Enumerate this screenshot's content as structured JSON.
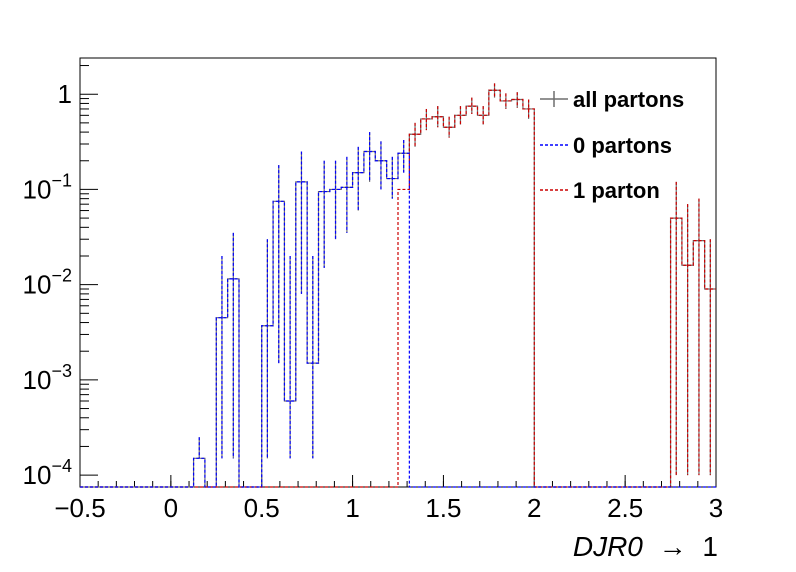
{
  "chart_data": {
    "type": "histogram",
    "xlabel_var": "DJR0",
    "xlabel_arrow": "→",
    "xlabel_suffix": "1",
    "xlim": [
      -0.5,
      3.0
    ],
    "ylim": [
      7.5e-05,
      2.4
    ],
    "yscale": "log",
    "bin_width": 0.0625,
    "x_ticks": [
      -0.5,
      0,
      0.5,
      1,
      1.5,
      2,
      2.5,
      3
    ],
    "x_tick_labels": [
      "−0.5",
      "0",
      "0.5",
      "1",
      "1.5",
      "2",
      "2.5",
      "3"
    ],
    "y_ticks": [
      {
        "value": 0.0001,
        "base": "10",
        "exp": "−4"
      },
      {
        "value": 0.001,
        "base": "10",
        "exp": "−3"
      },
      {
        "value": 0.01,
        "base": "10",
        "exp": "−2"
      },
      {
        "value": 0.1,
        "base": "10",
        "exp": "−1"
      },
      {
        "value": 1,
        "base": "1",
        "exp": ""
      }
    ],
    "legend": {
      "position": "top-right"
    },
    "series": [
      {
        "name": "all partons",
        "color": "#6e6e6e",
        "dash": "solid",
        "bins": [
          {
            "x": 0.125,
            "y": 0.00015,
            "err_hi": 0.00025
          },
          {
            "x": 0.25,
            "y": 0.0045,
            "err_lo": 0.00015,
            "err_hi": 0.02
          },
          {
            "x": 0.3125,
            "y": 0.0115,
            "err_lo": 0.00015,
            "err_hi": 0.035
          },
          {
            "x": 0.5,
            "y": 0.0037,
            "err_lo": 0.00015,
            "err_hi": 0.03
          },
          {
            "x": 0.5625,
            "y": 0.075,
            "err_lo": 0.0015,
            "err_hi": 0.18
          },
          {
            "x": 0.625,
            "y": 0.0006,
            "err_lo": 0.00015,
            "err_hi": 0.02
          },
          {
            "x": 0.6875,
            "y": 0.12,
            "err_lo": 0.008,
            "err_hi": 0.25
          },
          {
            "x": 0.75,
            "y": 0.0015,
            "err_lo": 0.00015,
            "err_hi": 0.02
          },
          {
            "x": 0.8125,
            "y": 0.095,
            "err_lo": 0.015,
            "err_hi": 0.2
          },
          {
            "x": 0.875,
            "y": 0.1,
            "err_lo": 0.03,
            "err_hi": 0.2
          },
          {
            "x": 0.9375,
            "y": 0.105,
            "err_lo": 0.035,
            "err_hi": 0.22
          },
          {
            "x": 1.0,
            "y": 0.15,
            "err_lo": 0.06,
            "err_hi": 0.28
          },
          {
            "x": 1.0625,
            "y": 0.25,
            "err_lo": 0.12,
            "err_hi": 0.4
          },
          {
            "x": 1.125,
            "y": 0.2,
            "err_lo": 0.1,
            "err_hi": 0.32
          },
          {
            "x": 1.1875,
            "y": 0.13,
            "err_lo": 0.08,
            "err_hi": 0.22
          },
          {
            "x": 1.25,
            "y": 0.24,
            "err_lo": 0.15,
            "err_hi": 0.33
          },
          {
            "x": 1.3125,
            "y": 0.38,
            "err_lo": 0.28,
            "err_hi": 0.5
          },
          {
            "x": 1.375,
            "y": 0.55,
            "err_lo": 0.42,
            "err_hi": 0.7
          },
          {
            "x": 1.4375,
            "y": 0.58,
            "err_lo": 0.45,
            "err_hi": 0.75
          },
          {
            "x": 1.5,
            "y": 0.45,
            "err_lo": 0.35,
            "err_hi": 0.58
          },
          {
            "x": 1.5625,
            "y": 0.6,
            "err_lo": 0.48,
            "err_hi": 0.75
          },
          {
            "x": 1.625,
            "y": 0.75,
            "err_lo": 0.62,
            "err_hi": 0.92
          },
          {
            "x": 1.6875,
            "y": 0.6,
            "err_lo": 0.48,
            "err_hi": 0.75
          },
          {
            "x": 1.75,
            "y": 1.1,
            "err_lo": 0.92,
            "err_hi": 1.3
          },
          {
            "x": 1.8125,
            "y": 0.85,
            "err_lo": 0.7,
            "err_hi": 1.02
          },
          {
            "x": 1.875,
            "y": 0.88,
            "err_lo": 0.72,
            "err_hi": 1.05
          },
          {
            "x": 1.9375,
            "y": 0.7,
            "err_lo": 0.55,
            "err_hi": 0.88
          },
          {
            "x": 2.75,
            "y": 0.05,
            "err_lo": 0.0001,
            "err_hi": 0.12
          },
          {
            "x": 2.8125,
            "y": 0.016,
            "err_lo": 0.0001,
            "err_hi": 0.07
          },
          {
            "x": 2.875,
            "y": 0.029,
            "err_lo": 0.0001,
            "err_hi": 0.08
          },
          {
            "x": 2.9375,
            "y": 0.009,
            "err_lo": 0.0001,
            "err_hi": 0.03
          }
        ]
      },
      {
        "name": "0 partons",
        "color": "#0000ff",
        "dash": "dashed",
        "bins": [
          {
            "x": 0.125,
            "y": 0.00015,
            "err_hi": 0.00025
          },
          {
            "x": 0.25,
            "y": 0.0045,
            "err_lo": 0.00015,
            "err_hi": 0.02
          },
          {
            "x": 0.3125,
            "y": 0.0115,
            "err_lo": 0.00015,
            "err_hi": 0.035
          },
          {
            "x": 0.5,
            "y": 0.0037,
            "err_lo": 0.00015,
            "err_hi": 0.03
          },
          {
            "x": 0.5625,
            "y": 0.075,
            "err_lo": 0.0015,
            "err_hi": 0.18
          },
          {
            "x": 0.625,
            "y": 0.0006,
            "err_lo": 0.00015,
            "err_hi": 0.02
          },
          {
            "x": 0.6875,
            "y": 0.12,
            "err_lo": 0.008,
            "err_hi": 0.25
          },
          {
            "x": 0.75,
            "y": 0.0015,
            "err_lo": 0.00015,
            "err_hi": 0.02
          },
          {
            "x": 0.8125,
            "y": 0.095,
            "err_lo": 0.015,
            "err_hi": 0.2
          },
          {
            "x": 0.875,
            "y": 0.1,
            "err_lo": 0.03,
            "err_hi": 0.2
          },
          {
            "x": 0.9375,
            "y": 0.105,
            "err_lo": 0.035,
            "err_hi": 0.22
          },
          {
            "x": 1.0,
            "y": 0.15,
            "err_lo": 0.06,
            "err_hi": 0.28
          },
          {
            "x": 1.0625,
            "y": 0.25,
            "err_lo": 0.12,
            "err_hi": 0.4
          },
          {
            "x": 1.125,
            "y": 0.2,
            "err_lo": 0.1,
            "err_hi": 0.32
          },
          {
            "x": 1.1875,
            "y": 0.13,
            "err_lo": 0.08,
            "err_hi": 0.22
          },
          {
            "x": 1.25,
            "y": 0.24,
            "err_lo": 0.15,
            "err_hi": 0.33
          }
        ]
      },
      {
        "name": "1 parton",
        "color": "#cc0000",
        "dash": "dashed",
        "bins": [
          {
            "x": 1.25,
            "y": 0.1
          },
          {
            "x": 1.3125,
            "y": 0.38,
            "err_lo": 0.28,
            "err_hi": 0.5
          },
          {
            "x": 1.375,
            "y": 0.55,
            "err_lo": 0.42,
            "err_hi": 0.7
          },
          {
            "x": 1.4375,
            "y": 0.58,
            "err_lo": 0.45,
            "err_hi": 0.75
          },
          {
            "x": 1.5,
            "y": 0.45,
            "err_lo": 0.35,
            "err_hi": 0.58
          },
          {
            "x": 1.5625,
            "y": 0.6,
            "err_lo": 0.48,
            "err_hi": 0.75
          },
          {
            "x": 1.625,
            "y": 0.75,
            "err_lo": 0.62,
            "err_hi": 0.92
          },
          {
            "x": 1.6875,
            "y": 0.6,
            "err_lo": 0.48,
            "err_hi": 0.75
          },
          {
            "x": 1.75,
            "y": 1.1,
            "err_lo": 0.92,
            "err_hi": 1.3
          },
          {
            "x": 1.8125,
            "y": 0.85,
            "err_lo": 0.7,
            "err_hi": 1.02
          },
          {
            "x": 1.875,
            "y": 0.88,
            "err_lo": 0.72,
            "err_hi": 1.05
          },
          {
            "x": 1.9375,
            "y": 0.7,
            "err_lo": 0.55,
            "err_hi": 0.88
          },
          {
            "x": 2.75,
            "y": 0.05,
            "err_lo": 0.0001,
            "err_hi": 0.12
          },
          {
            "x": 2.8125,
            "y": 0.016,
            "err_lo": 0.0001,
            "err_hi": 0.07
          },
          {
            "x": 2.875,
            "y": 0.029,
            "err_lo": 0.0001,
            "err_hi": 0.08
          },
          {
            "x": 2.9375,
            "y": 0.009,
            "err_lo": 0.0001,
            "err_hi": 0.03
          }
        ]
      }
    ]
  }
}
